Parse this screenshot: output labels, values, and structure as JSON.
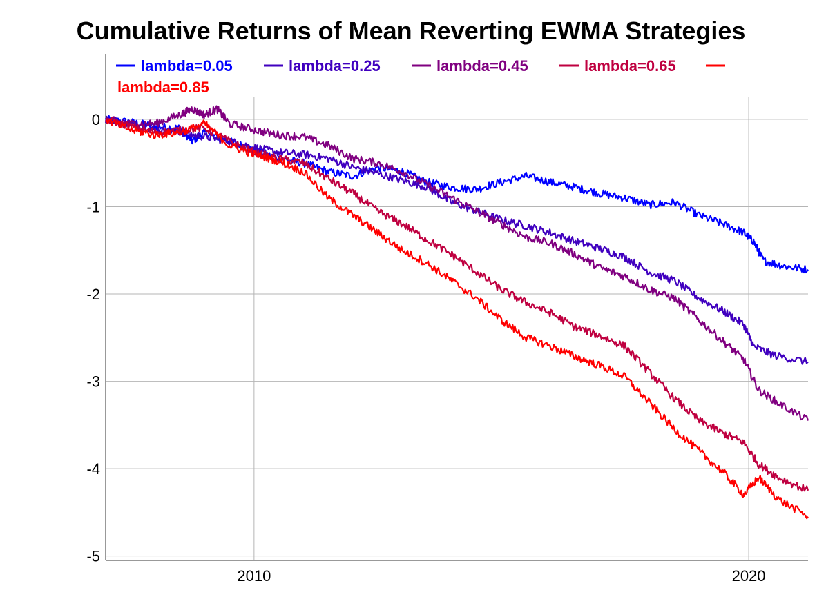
{
  "chart_data": {
    "type": "line",
    "title": "Cumulative Returns of Mean Reverting EWMA Strategies",
    "xlabel": "",
    "ylabel": "",
    "x_ticks": [
      "2010",
      "2020"
    ],
    "y_ticks": [
      "0",
      "-1",
      "-2",
      "-3",
      "-4",
      "-5"
    ],
    "xlim": [
      2007.0,
      2021.2
    ],
    "ylim": [
      -5.05,
      0.75
    ],
    "grid": true,
    "legend_position": "top-left",
    "x_label_positions": [
      2010,
      2020
    ],
    "y_tick_values": [
      0,
      -1,
      -2,
      -3,
      -4,
      -5
    ],
    "series": [
      {
        "name": "lambda=0.05",
        "color": "#0000ff",
        "x": [
          2007.0,
          2007.5,
          2008.0,
          2008.5,
          2008.75,
          2009.0,
          2009.5,
          2010.0,
          2010.5,
          2011.0,
          2011.5,
          2012.0,
          2012.5,
          2013.0,
          2013.5,
          2014.0,
          2014.5,
          2015.0,
          2015.5,
          2016.0,
          2016.5,
          2017.0,
          2017.5,
          2018.0,
          2018.5,
          2019.0,
          2019.5,
          2019.9,
          2020.1,
          2020.3,
          2020.7,
          2021.2
        ],
        "y": [
          0.0,
          -0.03,
          -0.08,
          -0.1,
          -0.25,
          -0.15,
          -0.25,
          -0.35,
          -0.45,
          -0.5,
          -0.6,
          -0.65,
          -0.55,
          -0.6,
          -0.72,
          -0.78,
          -0.8,
          -0.72,
          -0.65,
          -0.72,
          -0.78,
          -0.85,
          -0.9,
          -0.98,
          -0.95,
          -1.1,
          -1.2,
          -1.3,
          -1.4,
          -1.62,
          -1.68,
          -1.72
        ]
      },
      {
        "name": "lambda=0.25",
        "color": "#4000bf",
        "x": [
          2007.0,
          2007.5,
          2008.0,
          2008.5,
          2009.0,
          2009.5,
          2010.0,
          2010.5,
          2011.0,
          2011.5,
          2012.0,
          2012.5,
          2013.0,
          2013.5,
          2014.0,
          2014.5,
          2015.0,
          2015.5,
          2016.0,
          2016.5,
          2017.0,
          2017.5,
          2018.0,
          2018.5,
          2019.0,
          2019.5,
          2019.9,
          2020.1,
          2020.5,
          2021.2
        ],
        "y": [
          0.0,
          -0.05,
          -0.12,
          -0.15,
          -0.2,
          -0.25,
          -0.32,
          -0.38,
          -0.4,
          -0.45,
          -0.55,
          -0.62,
          -0.7,
          -0.78,
          -0.95,
          -1.05,
          -1.15,
          -1.22,
          -1.3,
          -1.4,
          -1.48,
          -1.58,
          -1.75,
          -1.85,
          -2.05,
          -2.2,
          -2.35,
          -2.6,
          -2.7,
          -2.78
        ]
      },
      {
        "name": "lambda=0.45",
        "color": "#800080",
        "x": [
          2007.0,
          2007.5,
          2008.0,
          2008.5,
          2008.75,
          2009.0,
          2009.25,
          2009.5,
          2010.0,
          2010.5,
          2011.0,
          2011.5,
          2012.0,
          2012.5,
          2013.0,
          2013.5,
          2014.0,
          2014.5,
          2015.0,
          2015.5,
          2016.0,
          2016.5,
          2017.0,
          2017.5,
          2018.0,
          2018.5,
          2019.0,
          2019.5,
          2019.9,
          2020.2,
          2020.6,
          2021.2
        ],
        "y": [
          0.0,
          -0.05,
          -0.05,
          0.05,
          0.12,
          0.05,
          0.12,
          -0.05,
          -0.12,
          -0.18,
          -0.2,
          -0.3,
          -0.45,
          -0.5,
          -0.6,
          -0.75,
          -0.9,
          -1.05,
          -1.2,
          -1.35,
          -1.42,
          -1.55,
          -1.7,
          -1.8,
          -1.95,
          -2.05,
          -2.3,
          -2.55,
          -2.75,
          -3.1,
          -3.25,
          -3.45
        ]
      },
      {
        "name": "lambda=0.65",
        "color": "#bf0040",
        "x": [
          2007.0,
          2007.5,
          2008.0,
          2008.5,
          2009.0,
          2009.5,
          2010.0,
          2010.5,
          2011.0,
          2011.5,
          2012.0,
          2012.5,
          2013.0,
          2013.5,
          2014.0,
          2014.5,
          2015.0,
          2015.5,
          2016.0,
          2016.5,
          2017.0,
          2017.5,
          2018.0,
          2018.5,
          2019.0,
          2019.5,
          2019.9,
          2020.2,
          2020.6,
          2021.2
        ],
        "y": [
          0.0,
          -0.08,
          -0.15,
          -0.12,
          -0.1,
          -0.25,
          -0.38,
          -0.45,
          -0.5,
          -0.68,
          -0.85,
          -1.05,
          -1.2,
          -1.38,
          -1.55,
          -1.75,
          -1.95,
          -2.1,
          -2.22,
          -2.38,
          -2.48,
          -2.6,
          -2.9,
          -3.2,
          -3.45,
          -3.6,
          -3.7,
          -3.95,
          -4.1,
          -4.25
        ]
      },
      {
        "name": "lambda=0.85",
        "color": "#ff0000",
        "x": [
          2007.0,
          2007.5,
          2008.0,
          2008.5,
          2009.0,
          2009.5,
          2010.0,
          2010.5,
          2011.0,
          2011.5,
          2012.0,
          2012.5,
          2013.0,
          2013.5,
          2014.0,
          2014.5,
          2015.0,
          2015.5,
          2016.0,
          2016.5,
          2017.0,
          2017.5,
          2018.0,
          2018.5,
          2019.0,
          2019.5,
          2019.9,
          2020.2,
          2020.6,
          2021.2
        ],
        "y": [
          0.0,
          -0.12,
          -0.18,
          -0.15,
          -0.05,
          -0.3,
          -0.4,
          -0.48,
          -0.6,
          -0.9,
          -1.1,
          -1.3,
          -1.5,
          -1.65,
          -1.85,
          -2.05,
          -2.3,
          -2.5,
          -2.6,
          -2.72,
          -2.82,
          -2.95,
          -3.25,
          -3.55,
          -3.8,
          -4.05,
          -4.3,
          -4.1,
          -4.35,
          -4.55
        ]
      }
    ]
  }
}
